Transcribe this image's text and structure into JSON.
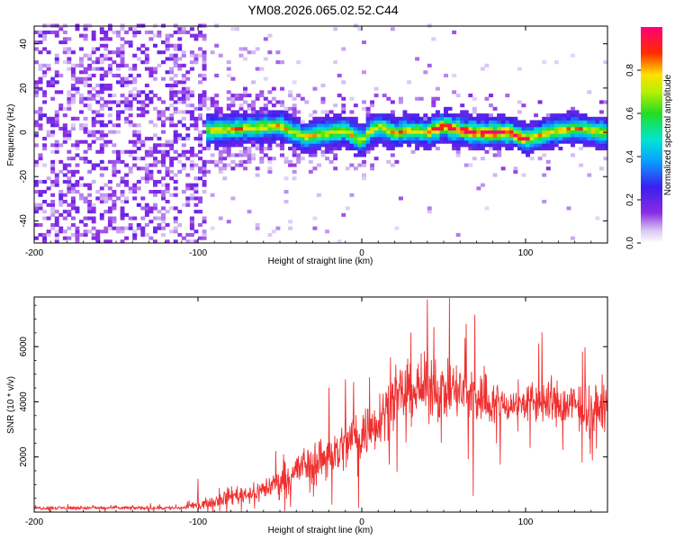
{
  "title": "YM08.2026.065.02.52.C44",
  "chart_data": [
    {
      "type": "heatmap",
      "xlabel": "Height of straight line (km)",
      "ylabel": "Frequency (Hz)",
      "xlim": [
        -200,
        150
      ],
      "ylim": [
        -50,
        48
      ],
      "xticks": [
        -200,
        -100,
        0,
        100
      ],
      "yticks": [
        -40,
        -20,
        0,
        20,
        40
      ],
      "colorbar": {
        "label": "Normalized spectral amplitude",
        "range": [
          0,
          1
        ],
        "ticks": [
          0.0,
          0.2,
          0.4,
          0.6,
          0.8
        ],
        "tick_labels": [
          "0.0",
          "0.2",
          "0.4",
          "0.6",
          "0.8"
        ],
        "colormap": "rainbow (white-purple-blue-cyan-green-yellow-red-magenta)"
      },
      "noise_region_x": [
        -200,
        -95
      ],
      "signal_band_centerline": [
        {
          "x": -108,
          "y": 2
        },
        {
          "x": -90,
          "y": 1
        },
        {
          "x": -70,
          "y": 2
        },
        {
          "x": -50,
          "y": 3
        },
        {
          "x": -35,
          "y": -2
        },
        {
          "x": -20,
          "y": 0
        },
        {
          "x": -10,
          "y": 1
        },
        {
          "x": 0,
          "y": -4
        },
        {
          "x": 3,
          "y": -1
        },
        {
          "x": 10,
          "y": 3
        },
        {
          "x": 20,
          "y": 0
        },
        {
          "x": 30,
          "y": 1
        },
        {
          "x": 40,
          "y": 0
        },
        {
          "x": 50,
          "y": 3
        },
        {
          "x": 60,
          "y": 1
        },
        {
          "x": 70,
          "y": 0
        },
        {
          "x": 80,
          "y": 0
        },
        {
          "x": 90,
          "y": 0
        },
        {
          "x": 100,
          "y": -3
        },
        {
          "x": 110,
          "y": -1
        },
        {
          "x": 120,
          "y": 1
        },
        {
          "x": 130,
          "y": 2
        },
        {
          "x": 140,
          "y": 1
        },
        {
          "x": 150,
          "y": 0
        }
      ],
      "peak_amplitude_x_range": [
        40,
        100
      ]
    },
    {
      "type": "line",
      "xlabel": "Height of straight line (km)",
      "ylabel": "SNR (10 * v/v)",
      "xlim": [
        -200,
        150
      ],
      "ylim": [
        0,
        7800
      ],
      "xticks": [
        -200,
        -100,
        0,
        100
      ],
      "yticks": [
        2000,
        4000,
        6000
      ],
      "series": [
        {
          "name": "SNR",
          "color": "#ef3030",
          "envelope": [
            {
              "x": -200,
              "mean": 150,
              "spread": 100
            },
            {
              "x": -150,
              "mean": 150,
              "spread": 100
            },
            {
              "x": -110,
              "mean": 150,
              "spread": 120
            },
            {
              "x": -100,
              "mean": 250,
              "spread": 200
            },
            {
              "x": -90,
              "mean": 400,
              "spread": 300
            },
            {
              "x": -80,
              "mean": 600,
              "spread": 500
            },
            {
              "x": -65,
              "mean": 700,
              "spread": 500
            },
            {
              "x": -50,
              "mean": 1100,
              "spread": 800
            },
            {
              "x": -35,
              "mean": 1700,
              "spread": 1100
            },
            {
              "x": -25,
              "mean": 1900,
              "spread": 1300
            },
            {
              "x": -15,
              "mean": 2200,
              "spread": 1400
            },
            {
              "x": -5,
              "mean": 2700,
              "spread": 1500
            },
            {
              "x": 5,
              "mean": 3000,
              "spread": 1500
            },
            {
              "x": 15,
              "mean": 3800,
              "spread": 1500
            },
            {
              "x": 25,
              "mean": 4300,
              "spread": 1600
            },
            {
              "x": 40,
              "mean": 4500,
              "spread": 1700
            },
            {
              "x": 55,
              "mean": 4400,
              "spread": 1600
            },
            {
              "x": 70,
              "mean": 4200,
              "spread": 1600
            },
            {
              "x": 85,
              "mean": 3900,
              "spread": 1100
            },
            {
              "x": 95,
              "mean": 3900,
              "spread": 800
            },
            {
              "x": 105,
              "mean": 4000,
              "spread": 1200
            },
            {
              "x": 120,
              "mean": 3900,
              "spread": 1300
            },
            {
              "x": 135,
              "mean": 3800,
              "spread": 1300
            },
            {
              "x": 150,
              "mean": 3700,
              "spread": 1200
            }
          ],
          "spikes": [
            {
              "x": 40,
              "y": 7700
            },
            {
              "x": 69,
              "y": 7150
            },
            {
              "x": 30,
              "y": 6500
            },
            {
              "x": 44,
              "y": 6700
            },
            {
              "x": 63,
              "y": 6300
            },
            {
              "x": 68,
              "y": 600
            },
            {
              "x": -100,
              "y": 1200
            },
            {
              "x": -20,
              "y": 4500
            },
            {
              "x": -10,
              "y": 4800
            },
            {
              "x": -5,
              "y": 4700
            },
            {
              "x": 108,
              "y": 6100
            }
          ]
        }
      ]
    }
  ]
}
